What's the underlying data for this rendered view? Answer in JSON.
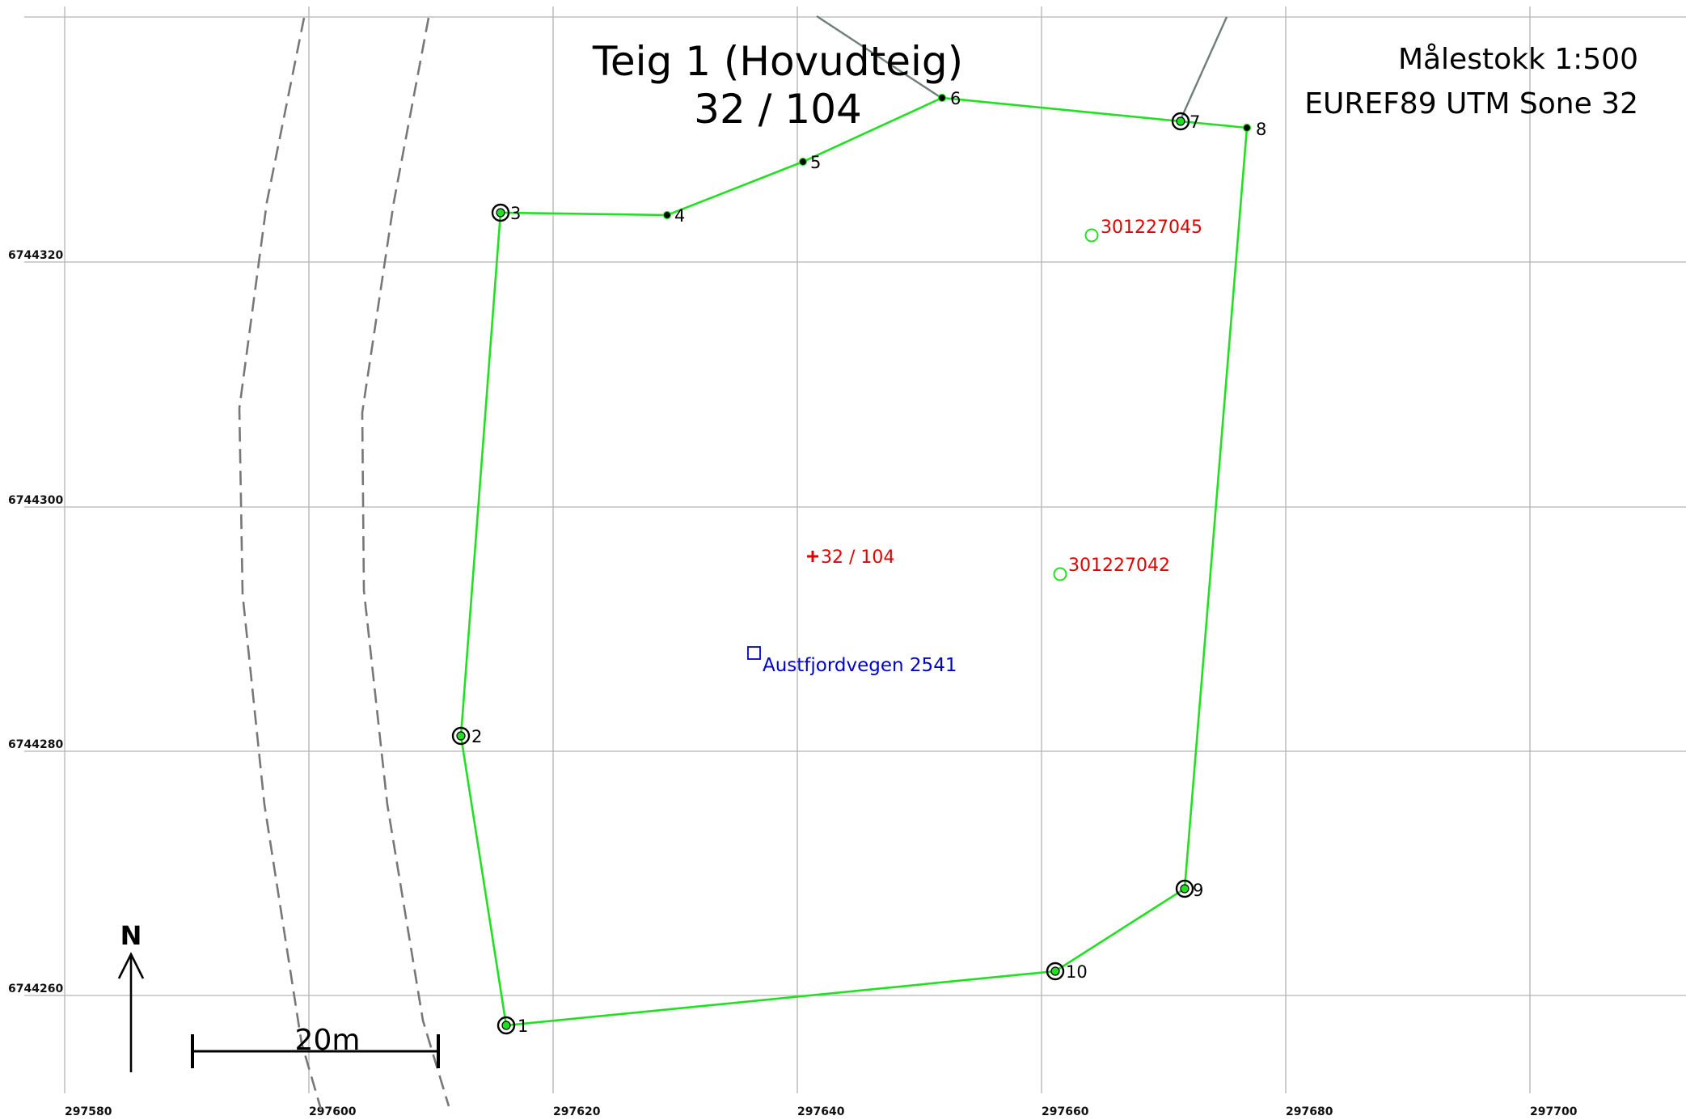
{
  "header": {
    "title_line1": "Teig 1 (Hovudteig)",
    "title_line2": "32 / 104",
    "scale": "Målestokk 1:500",
    "crs": "EUREF89 UTM Sone 32"
  },
  "grid": {
    "x_labels": [
      "297580",
      "297600",
      "297620",
      "297640",
      "297660",
      "297680",
      "297700"
    ],
    "y_labels": [
      "6744320",
      "6744300",
      "6744280",
      "6744260"
    ]
  },
  "boundary_points": [
    {
      "id": "1",
      "label": "1",
      "marker": "monument"
    },
    {
      "id": "2",
      "label": "2",
      "marker": "monument"
    },
    {
      "id": "3",
      "label": "3",
      "marker": "monument"
    },
    {
      "id": "4",
      "label": "4",
      "marker": "point"
    },
    {
      "id": "5",
      "label": "5",
      "marker": "point"
    },
    {
      "id": "6",
      "label": "6",
      "marker": "point"
    },
    {
      "id": "7",
      "label": "7",
      "marker": "monument"
    },
    {
      "id": "8",
      "label": "8",
      "marker": "point"
    },
    {
      "id": "9",
      "label": "9",
      "marker": "monument"
    },
    {
      "id": "10",
      "label": "10",
      "marker": "monument"
    }
  ],
  "features": {
    "parcel_label": "32 / 104",
    "building_1": "301227045",
    "building_2": "301227042",
    "address": "Austfjordvegen 2541"
  },
  "north_arrow": {
    "label": "N"
  },
  "scale_bar": {
    "label": "20m"
  },
  "colors": {
    "boundary": "#21e021",
    "building_marker": "#21e021",
    "parcel_label": "#e00000",
    "address": "#0000cc",
    "road": "#777777",
    "grid": "#b3b3b3"
  }
}
